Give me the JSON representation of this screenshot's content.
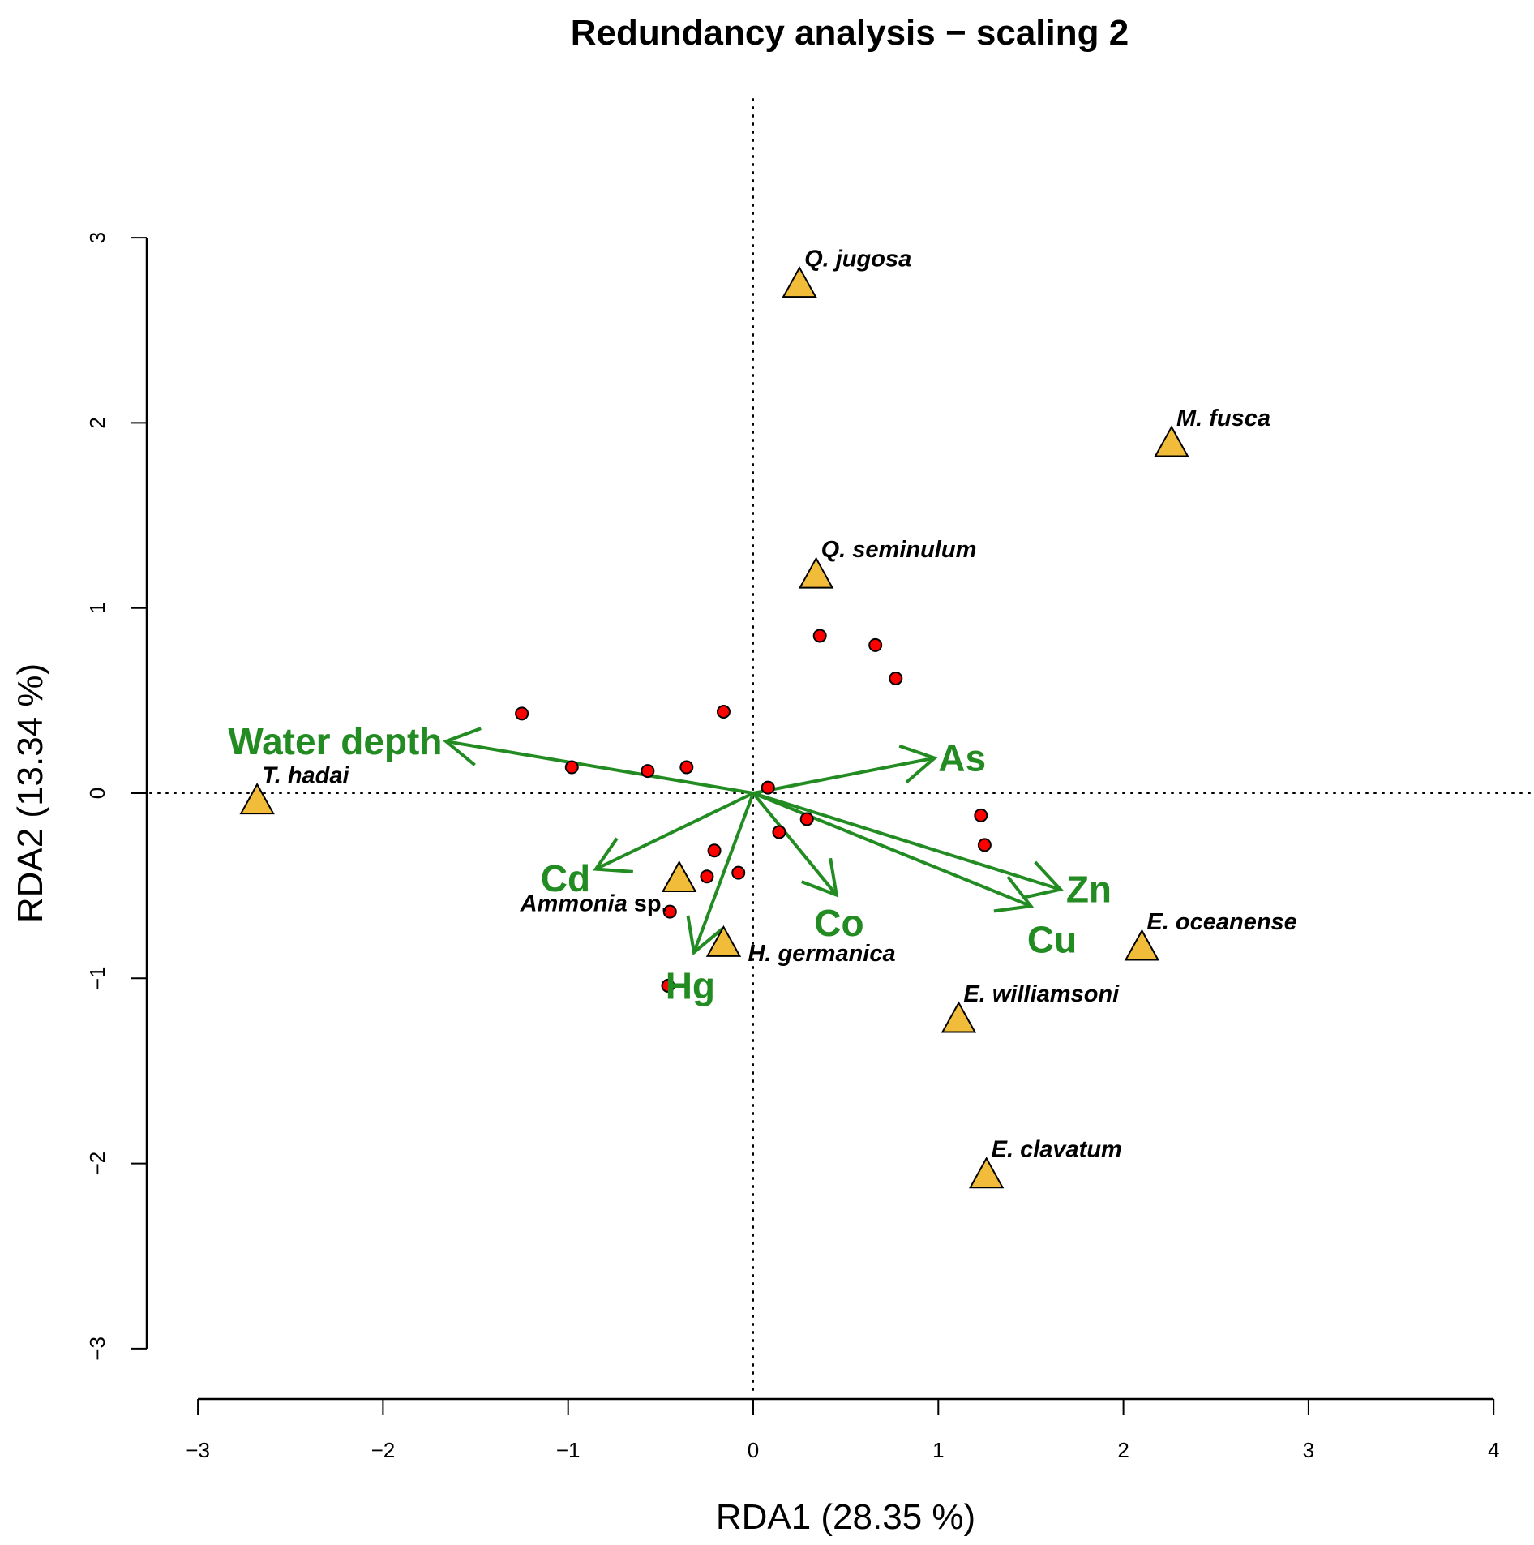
{
  "chart_data": {
    "type": "scatter",
    "subtype": "rda-biplot",
    "title": "Redundancy analysis − scaling 2",
    "xlabel": "RDA1 (28.35 %)",
    "ylabel": "RDA2 (13.34 %)",
    "xlim": [
      -3,
      4
    ],
    "ylim": [
      -3,
      3
    ],
    "xticks": [
      -3,
      -2,
      -1,
      0,
      1,
      2,
      3,
      4
    ],
    "yticks": [
      -3,
      -2,
      -1,
      0,
      1,
      2,
      3
    ],
    "xtick_labels": [
      "−3",
      "−2",
      "−1",
      "0",
      "1",
      "2",
      "3",
      "4"
    ],
    "ytick_labels": [
      "−3",
      "−2",
      "−1",
      "0",
      "1",
      "2",
      "3"
    ],
    "grid": false,
    "reference_lines": {
      "x": 0,
      "y": 0,
      "style": "dotted"
    },
    "colors": {
      "sites": "#FF0000",
      "species": "#F0BC3A",
      "env": "#228B22",
      "outline": "#000000"
    },
    "sites": [
      {
        "x": -1.25,
        "y": 0.43
      },
      {
        "x": -0.98,
        "y": 0.14
      },
      {
        "x": -0.57,
        "y": 0.12
      },
      {
        "x": -0.36,
        "y": 0.14
      },
      {
        "x": -0.16,
        "y": 0.44
      },
      {
        "x": 0.08,
        "y": 0.03
      },
      {
        "x": 0.36,
        "y": 0.85
      },
      {
        "x": 0.66,
        "y": 0.8
      },
      {
        "x": 0.77,
        "y": 0.62
      },
      {
        "x": -0.21,
        "y": -0.31
      },
      {
        "x": -0.25,
        "y": -0.45
      },
      {
        "x": -0.08,
        "y": -0.43
      },
      {
        "x": -0.45,
        "y": -0.64
      },
      {
        "x": -0.46,
        "y": -1.04
      },
      {
        "x": 0.14,
        "y": -0.21
      },
      {
        "x": 0.29,
        "y": -0.14
      },
      {
        "x": 1.23,
        "y": -0.12
      },
      {
        "x": 1.25,
        "y": -0.28
      }
    ],
    "species": [
      {
        "name": "T. hadai",
        "suffix": "",
        "x": -2.68,
        "y": -0.05,
        "label_pos": "upper-right"
      },
      {
        "name": "Q. jugosa",
        "suffix": "",
        "x": 0.25,
        "y": 2.74,
        "label_pos": "upper-right"
      },
      {
        "name": "M. fusca",
        "suffix": "",
        "x": 2.26,
        "y": 1.88,
        "label_pos": "upper-right"
      },
      {
        "name": "Q. seminulum",
        "suffix": "",
        "x": 0.34,
        "y": 1.17,
        "label_pos": "upper-right"
      },
      {
        "name": "Ammonia",
        "suffix": " sp.",
        "x": -0.4,
        "y": -0.47,
        "label_pos": "below-left"
      },
      {
        "name": "H. germanica",
        "suffix": "",
        "x": -0.16,
        "y": -0.82,
        "label_pos": "right"
      },
      {
        "name": "E. oceanense",
        "suffix": "",
        "x": 2.1,
        "y": -0.84,
        "label_pos": "upper-right"
      },
      {
        "name": "E. williamsoni",
        "suffix": "",
        "x": 1.11,
        "y": -1.23,
        "label_pos": "upper-right"
      },
      {
        "name": "E. clavatum",
        "suffix": "",
        "x": 1.26,
        "y": -2.07,
        "label_pos": "upper-right"
      }
    ],
    "env_vectors": [
      {
        "name": "Water depth",
        "x": -1.66,
        "y": 0.28,
        "label_anchor": "end",
        "label_dx": -0.02,
        "label_dy": 0.0
      },
      {
        "name": "As",
        "x": 0.98,
        "y": 0.19,
        "label_anchor": "start",
        "label_dx": 0.02,
        "label_dy": 0.0
      },
      {
        "name": "Zn",
        "x": 1.66,
        "y": -0.52,
        "label_anchor": "start",
        "label_dx": 0.03,
        "label_dy": 0.0
      },
      {
        "name": "Cu",
        "x": 1.5,
        "y": -0.61,
        "label_anchor": "start",
        "label_dx": -0.02,
        "label_dy": -0.18
      },
      {
        "name": "Co",
        "x": 0.45,
        "y": -0.55,
        "label_anchor": "start",
        "label_dx": -0.12,
        "label_dy": -0.15
      },
      {
        "name": "Cd",
        "x": -0.85,
        "y": -0.41,
        "label_anchor": "end",
        "label_dx": -0.03,
        "label_dy": -0.05
      },
      {
        "name": "Hg",
        "x": -0.32,
        "y": -0.86,
        "label_anchor": "middle",
        "label_dx": -0.02,
        "label_dy": -0.18
      }
    ]
  }
}
